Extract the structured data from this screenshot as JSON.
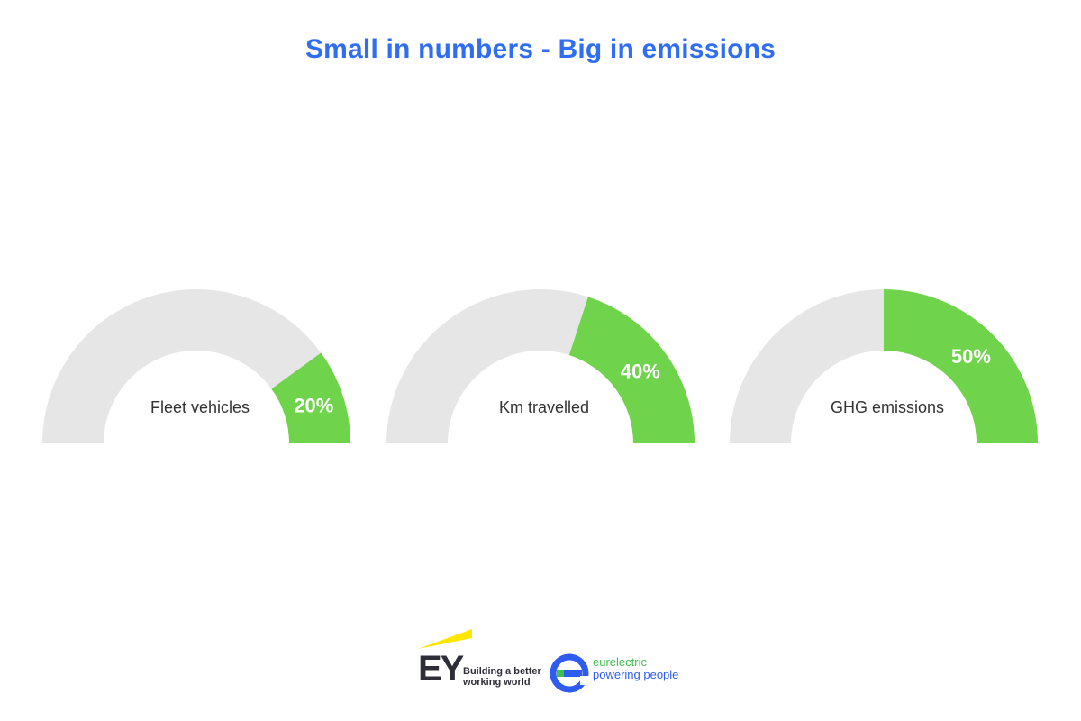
{
  "chart_data": {
    "title": "Small in numbers - Big in emissions",
    "type": "gauge",
    "colors": {
      "filled": "#6fd34b",
      "empty": "#e6e6e6",
      "title": "#2f6df2"
    },
    "gauges": [
      {
        "label": "Fleet vehicles",
        "value": 20,
        "value_label": "20%"
      },
      {
        "label": "Km travelled",
        "value": 40,
        "value_label": "40%"
      },
      {
        "label": "GHG emissions",
        "value": 50,
        "value_label": "50%"
      }
    ]
  },
  "logos": {
    "ey": {
      "letters": "EY",
      "tagline_line1": "Building a better",
      "tagline_line2": "working world"
    },
    "eurelectric": {
      "name": "eurelectric",
      "tagline": "powering people"
    }
  }
}
